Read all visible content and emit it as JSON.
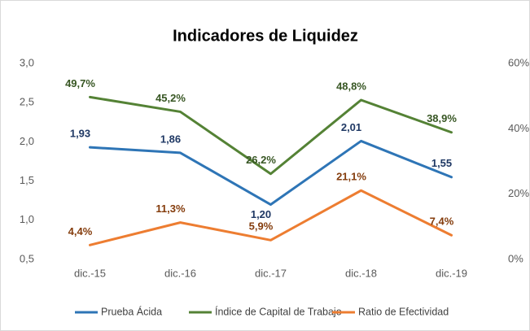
{
  "chart_data": {
    "type": "line",
    "title": "Indicadores de Liquidez",
    "categories": [
      "dic.-15",
      "dic.-16",
      "dic.-17",
      "dic.-18",
      "dic.-19"
    ],
    "ylim": [
      0.5,
      3.0
    ],
    "yticks": [
      {
        "value": 0.5,
        "label": "0,5"
      },
      {
        "value": 1.0,
        "label": "1,0"
      },
      {
        "value": 1.5,
        "label": "1,5"
      },
      {
        "value": 2.0,
        "label": "2,0"
      },
      {
        "value": 2.5,
        "label": "2,5"
      },
      {
        "value": 3.0,
        "label": "3,0"
      }
    ],
    "y2lim": [
      0,
      60
    ],
    "y2ticks": [
      {
        "value": 0,
        "label": "0%"
      },
      {
        "value": 20,
        "label": "20%"
      },
      {
        "value": 40,
        "label": "40%"
      },
      {
        "value": 60,
        "label": "60%"
      }
    ],
    "grid": false,
    "legend": "bottom",
    "series": [
      {
        "name": "Prueba Ácida",
        "color": "#2e75b6",
        "label_color": "#1f3864",
        "values": [
          1.93,
          1.86,
          1.2,
          2.01,
          1.55
        ],
        "value_labels": [
          "1,93",
          "1,86",
          "1,20",
          "2,01",
          "1,55"
        ]
      },
      {
        "name": "Índice de Capital de Trabajo",
        "color": "#548235",
        "label_color": "#375623",
        "axis": "y2",
        "values": [
          49.7,
          45.2,
          26.2,
          48.8,
          38.9
        ],
        "value_labels": [
          "49,7%",
          "45,2%",
          "26,2%",
          "48,8%",
          "38,9%"
        ]
      },
      {
        "name": "Ratio de Efectividad",
        "color": "#ed7d31",
        "label_color": "#843c0c",
        "axis": "y2",
        "values": [
          4.4,
          11.3,
          5.9,
          21.1,
          7.4
        ],
        "value_labels": [
          "4,4%",
          "11,3%",
          "5,9%",
          "21,1%",
          "7,4%"
        ]
      }
    ]
  }
}
